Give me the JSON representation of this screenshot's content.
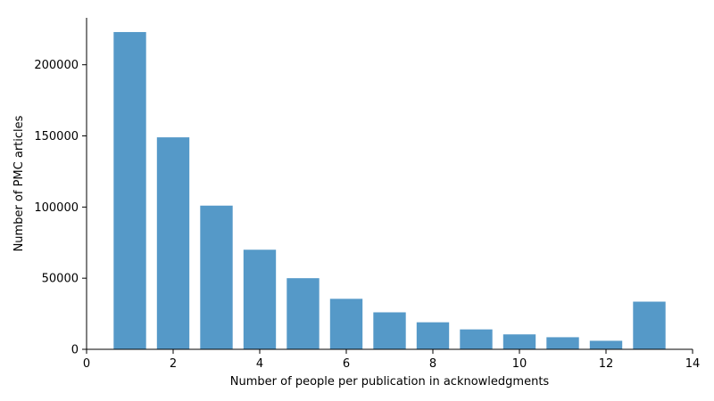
{
  "chart_data": {
    "type": "bar",
    "x": [
      1,
      2,
      3,
      4,
      5,
      6,
      7,
      8,
      9,
      10,
      11,
      12,
      13
    ],
    "values": [
      223000,
      149000,
      101000,
      70000,
      50000,
      35500,
      26000,
      19000,
      14000,
      10500,
      8500,
      6000,
      33500
    ],
    "xlabel": "Number of people per publication in acknowledgments",
    "ylabel": "Number of PMC articles",
    "xlim": [
      0,
      14
    ],
    "ylim": [
      0,
      233000
    ],
    "xticks": [
      0,
      2,
      4,
      6,
      8,
      10,
      12,
      14
    ],
    "yticks": [
      0,
      50000,
      100000,
      150000,
      200000
    ],
    "bar_color": "#5599c8",
    "bar_width": 0.75,
    "grid": false,
    "spines": [
      "left",
      "bottom"
    ]
  }
}
